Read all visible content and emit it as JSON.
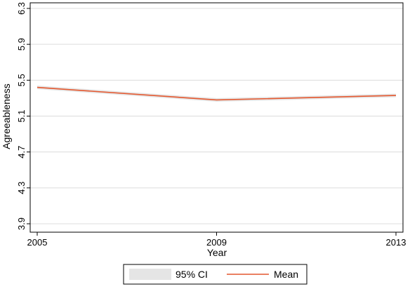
{
  "chart_data": {
    "type": "line",
    "x": [
      2005,
      2009,
      2013
    ],
    "series": [
      {
        "name": "Mean",
        "values": [
          5.42,
          5.28,
          5.33
        ],
        "color": "#e4572e"
      }
    ],
    "ci": {
      "name": "95% CI",
      "lower": [
        5.4,
        5.26,
        5.31
      ],
      "upper": [
        5.44,
        5.3,
        5.35
      ],
      "color": "#e5e5e5"
    },
    "xticks": [
      "2005",
      "2009",
      "2013"
    ],
    "yticks": [
      "3.9",
      "4.3",
      "4.7",
      "5.1",
      "5.5",
      "5.9",
      "6.3"
    ],
    "xlabel": "Year",
    "ylabel": "Agreeableness",
    "xlim": [
      2005,
      2013
    ],
    "ylim": [
      3.9,
      6.3
    ],
    "grid": true,
    "legend_position": "bottom"
  }
}
